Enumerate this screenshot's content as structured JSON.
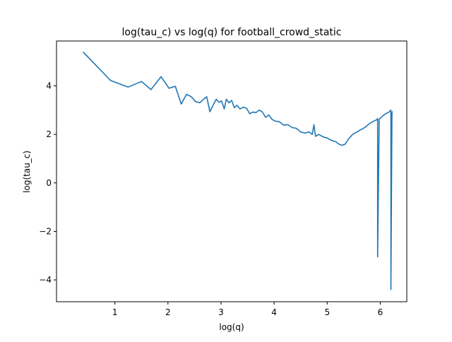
{
  "chart_data": {
    "type": "line",
    "title": "log(tau_c) vs log(q) for football_crowd_static",
    "xlabel": "log(q)",
    "ylabel": "log(tau_c)",
    "xlim": [
      -0.1,
      6.5
    ],
    "ylim": [
      -4.9,
      5.85
    ],
    "xticks": [
      1,
      2,
      3,
      4,
      5,
      6
    ],
    "yticks": [
      -4,
      -2,
      0,
      2,
      4
    ],
    "grid": false,
    "series": [
      {
        "color": "#1f77b4",
        "x": [
          0.4,
          0.92,
          1.25,
          1.5,
          1.68,
          1.87,
          2.02,
          2.14,
          2.25,
          2.35,
          2.44,
          2.52,
          2.6,
          2.67,
          2.73,
          2.79,
          2.85,
          2.91,
          2.96,
          3.01,
          3.06,
          3.1,
          3.15,
          3.2,
          3.25,
          3.3,
          3.36,
          3.42,
          3.48,
          3.54,
          3.6,
          3.66,
          3.72,
          3.78,
          3.84,
          3.9,
          3.96,
          4.02,
          4.1,
          4.18,
          4.26,
          4.34,
          4.42,
          4.5,
          4.58,
          4.66,
          4.72,
          4.75,
          4.78,
          4.84,
          4.92,
          5.0,
          5.08,
          5.16,
          5.22,
          5.28,
          5.34,
          5.4,
          5.48,
          5.56,
          5.64,
          5.72,
          5.8,
          5.88,
          5.93,
          5.95,
          5.95,
          5.98,
          6.04,
          6.1,
          6.15,
          6.18,
          6.2,
          6.2,
          6.22,
          6.23
        ],
        "values": [
          5.4,
          4.22,
          3.95,
          4.18,
          3.85,
          4.38,
          3.9,
          3.98,
          3.25,
          3.65,
          3.55,
          3.35,
          3.3,
          3.45,
          3.55,
          2.93,
          3.2,
          3.45,
          3.32,
          3.38,
          3.05,
          3.45,
          3.3,
          3.4,
          3.1,
          3.2,
          3.05,
          3.12,
          3.08,
          2.85,
          2.92,
          2.9,
          3.0,
          2.92,
          2.7,
          2.8,
          2.62,
          2.55,
          2.52,
          2.38,
          2.4,
          2.28,
          2.25,
          2.1,
          2.05,
          2.1,
          2.0,
          2.4,
          1.92,
          2.0,
          1.9,
          1.85,
          1.75,
          1.7,
          1.6,
          1.55,
          1.6,
          1.8,
          2.0,
          2.1,
          2.2,
          2.3,
          2.45,
          2.55,
          2.6,
          2.65,
          -3.05,
          2.62,
          2.75,
          2.85,
          2.9,
          2.95,
          3.0,
          -4.4,
          2.9,
          2.95
        ]
      }
    ]
  }
}
